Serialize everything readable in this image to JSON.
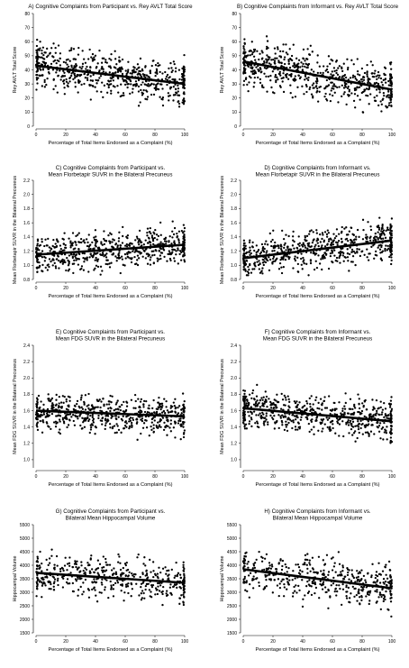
{
  "x_tick_labels": [
    "0",
    "20",
    "40",
    "60",
    "80",
    "100"
  ],
  "chart_data": [
    {
      "type": "scatter",
      "title_line1": "A) Cognitive Complaints from Participant vs. Rey AVLT Total Score",
      "title_line2": "",
      "xlabel": "Percentage of Total Items Endorsed as a Complaint (%)",
      "ylabel": "Rey AVLT Total Score",
      "xlim": [
        0,
        100
      ],
      "ylim": [
        0,
        80
      ],
      "yticks": [
        0,
        10,
        20,
        30,
        40,
        50,
        60,
        70,
        80
      ],
      "yticklabels": [
        "0",
        "10",
        "20",
        "30",
        "40",
        "50",
        "60",
        "70",
        "80"
      ],
      "trend": {
        "x": [
          0,
          100
        ],
        "y": [
          43,
          30
        ]
      },
      "sample": {
        "n": 620,
        "spread": 12,
        "ymin": 0,
        "ymax": 75,
        "seed": 11
      }
    },
    {
      "type": "scatter",
      "title_line1": "B) Cognitive Complaints from Informant vs. Rey AVLT Total Score",
      "title_line2": "",
      "xlabel": "Percentage of Total Items Endorsed as a Complaint (%)",
      "ylabel": "Rey AVLT Total Score",
      "xlim": [
        0,
        100
      ],
      "ylim": [
        0,
        80
      ],
      "yticks": [
        0,
        10,
        20,
        30,
        40,
        50,
        60,
        70,
        80
      ],
      "yticklabels": [
        "0",
        "10",
        "20",
        "30",
        "40",
        "50",
        "60",
        "70",
        "80"
      ],
      "trend": {
        "x": [
          0,
          100
        ],
        "y": [
          46,
          26
        ]
      },
      "sample": {
        "n": 620,
        "spread": 12,
        "ymin": 0,
        "ymax": 75,
        "seed": 23
      }
    },
    {
      "type": "scatter",
      "title_line1": "C) Cognitive Complaints from Participant vs.",
      "title_line2": "Mean Florbetapir SUVR in the Bilateral Precuneus",
      "xlabel": "Percentage of Total Items Endorsed as a Complaint (%)",
      "ylabel": "Mean Florbetapir SUVR in the Bilateral Precuneus",
      "xlim": [
        0,
        100
      ],
      "ylim": [
        0.8,
        2.2
      ],
      "yticks": [
        0.8,
        1.0,
        1.2,
        1.4,
        1.6,
        1.8,
        2.0,
        2.2
      ],
      "yticklabels": [
        "0.8",
        "1.0",
        "1.2",
        "1.4",
        "1.6",
        "1.8",
        "2.0",
        "2.2"
      ],
      "trend": {
        "x": [
          0,
          100
        ],
        "y": [
          1.15,
          1.29
        ]
      },
      "sample": {
        "n": 620,
        "spread": 0.2,
        "ymin": 0.86,
        "ymax": 2.05,
        "seed": 37
      }
    },
    {
      "type": "scatter",
      "title_line1": "D) Cognitive Complaints from Informant vs.",
      "title_line2": "Mean Florbetapir SUVR in the Bilateral Precuneus",
      "xlabel": "Percentage of Total Items Endorsed as a Complaint (%)",
      "ylabel": "Mean Florbetapir SUVR in the Bilateral Precuneus",
      "xlim": [
        0,
        100
      ],
      "ylim": [
        0.8,
        2.2
      ],
      "yticks": [
        0.8,
        1.0,
        1.2,
        1.4,
        1.6,
        1.8,
        2.0,
        2.2
      ],
      "yticklabels": [
        "0.8",
        "1.0",
        "1.2",
        "1.4",
        "1.6",
        "1.8",
        "2.0",
        "2.2"
      ],
      "trend": {
        "x": [
          0,
          100
        ],
        "y": [
          1.1,
          1.35
        ]
      },
      "sample": {
        "n": 620,
        "spread": 0.2,
        "ymin": 0.86,
        "ymax": 2.05,
        "seed": 41
      }
    },
    {
      "type": "scatter",
      "title_line1": "E) Cognitive Complaints from Participant vs.",
      "title_line2": "Mean FDG SUVR in the Bilateral Precuneus",
      "xlabel": "Percentage of Total Items Endorsed as a Complaint (%)",
      "ylabel": "Mean FDG SUVR in the Bilateral Precuneus",
      "xlim": [
        0,
        100
      ],
      "ylim": [
        0.9,
        2.4
      ],
      "yticks": [
        1.0,
        1.2,
        1.4,
        1.6,
        1.8,
        2.0,
        2.2,
        2.4
      ],
      "yticklabels": [
        "1.0",
        "1.2",
        "1.4",
        "1.6",
        "1.8",
        "2.0",
        "2.2",
        "2.4"
      ],
      "trend": {
        "x": [
          0,
          100
        ],
        "y": [
          1.6,
          1.53
        ]
      },
      "sample": {
        "n": 620,
        "spread": 0.17,
        "ymin": 1.0,
        "ymax": 2.25,
        "seed": 53
      }
    },
    {
      "type": "scatter",
      "title_line1": "F) Cognitive Complaints from Informant vs.",
      "title_line2": "Mean FDG SUVR in the Bilateral Precuneus",
      "xlabel": "Percentage of Total Items Endorsed as a Complaint (%)",
      "ylabel": "Mean FDG SUVR in the Bilateral Precuneus",
      "xlim": [
        0,
        100
      ],
      "ylim": [
        0.9,
        2.4
      ],
      "yticks": [
        1.0,
        1.2,
        1.4,
        1.6,
        1.8,
        2.0,
        2.2,
        2.4
      ],
      "yticklabels": [
        "1.0",
        "1.2",
        "1.4",
        "1.6",
        "1.8",
        "2.0",
        "2.2",
        "2.4"
      ],
      "trend": {
        "x": [
          0,
          100
        ],
        "y": [
          1.63,
          1.47
        ]
      },
      "sample": {
        "n": 620,
        "spread": 0.17,
        "ymin": 1.0,
        "ymax": 2.3,
        "seed": 67
      }
    },
    {
      "type": "scatter",
      "title_line1": "G) Cognitive Complaints from Participant vs.",
      "title_line2": "Bilateral Mean Hippocampal Volume",
      "xlabel": "Percentage of Total Items Endorsed as a Complaint (%)",
      "ylabel": "Hippocampal Volume",
      "xlim": [
        0,
        100
      ],
      "ylim": [
        1500,
        5500
      ],
      "yticks": [
        1500,
        2000,
        2500,
        3000,
        3500,
        4000,
        4500,
        5000,
        5500
      ],
      "yticklabels": [
        "1500",
        "2000",
        "2500",
        "3000",
        "3500",
        "4000",
        "4500",
        "5000",
        "5500"
      ],
      "trend": {
        "x": [
          0,
          100
        ],
        "y": [
          3720,
          3350
        ]
      },
      "sample": {
        "n": 460,
        "spread": 580,
        "ymin": 1800,
        "ymax": 5050,
        "seed": 79
      }
    },
    {
      "type": "scatter",
      "title_line1": "H) Cognitive Complaints from Informant vs.",
      "title_line2": "Bilateral Mean Hippocampal Volume",
      "xlabel": "Percentage of Total Items Endorsed as a Complaint (%)",
      "ylabel": "Hippocampal Volume",
      "xlim": [
        0,
        100
      ],
      "ylim": [
        1500,
        5500
      ],
      "yticks": [
        1500,
        2000,
        2500,
        3000,
        3500,
        4000,
        4500,
        5000,
        5500
      ],
      "yticklabels": [
        "1500",
        "2000",
        "2500",
        "3000",
        "3500",
        "4000",
        "4500",
        "5000",
        "5500"
      ],
      "trend": {
        "x": [
          0,
          100
        ],
        "y": [
          3850,
          3150
        ]
      },
      "sample": {
        "n": 460,
        "spread": 580,
        "ymin": 1800,
        "ymax": 5050,
        "seed": 97
      }
    }
  ]
}
